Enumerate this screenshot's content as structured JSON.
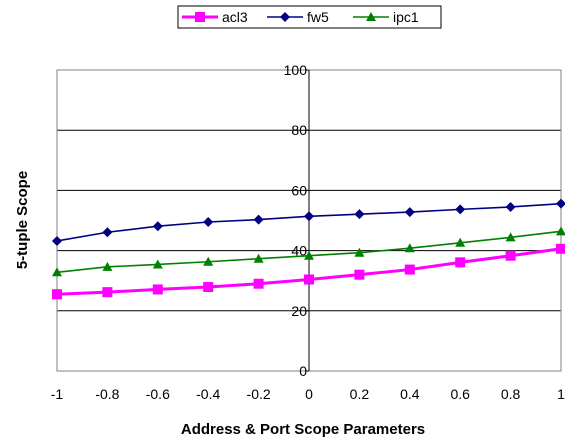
{
  "chart_data": {
    "type": "line",
    "xlabel": "Address & Port Scope Parameters",
    "ylabel": "5-tuple Scope",
    "x": [
      -1,
      -0.8,
      -0.6,
      -0.4,
      -0.2,
      0,
      0.2,
      0.4,
      0.6,
      0.8,
      1
    ],
    "x_tick_labels": [
      "-1",
      "-0.8",
      "-0.6",
      "-0.4",
      "-0.2",
      "0",
      "0.2",
      "0.4",
      "0.6",
      "0.8",
      "1"
    ],
    "xlim": [
      -1,
      1
    ],
    "ylim": [
      0,
      100
    ],
    "y_ticks": [
      0,
      20,
      40,
      60,
      80,
      100
    ],
    "y_tick_labels": [
      "0",
      "20",
      "40",
      "60",
      "80",
      "100"
    ],
    "grid": "horizontal",
    "legend_position": "top",
    "series": [
      {
        "name": "acl3",
        "color": "#ff00ff",
        "marker": "square",
        "values": [
          25.5,
          26.2,
          27.1,
          27.9,
          29.0,
          30.4,
          32.0,
          33.7,
          36.1,
          38.3,
          40.6
        ]
      },
      {
        "name": "fw5",
        "color": "#000080",
        "marker": "diamond",
        "values": [
          43.2,
          46.1,
          48.1,
          49.5,
          50.3,
          51.4,
          52.1,
          52.8,
          53.7,
          54.5,
          55.6
        ]
      },
      {
        "name": "ipc1",
        "color": "#008000",
        "marker": "triangle",
        "values": [
          32.8,
          34.6,
          35.4,
          36.3,
          37.3,
          38.3,
          39.3,
          40.8,
          42.6,
          44.4,
          46.4
        ]
      }
    ]
  }
}
